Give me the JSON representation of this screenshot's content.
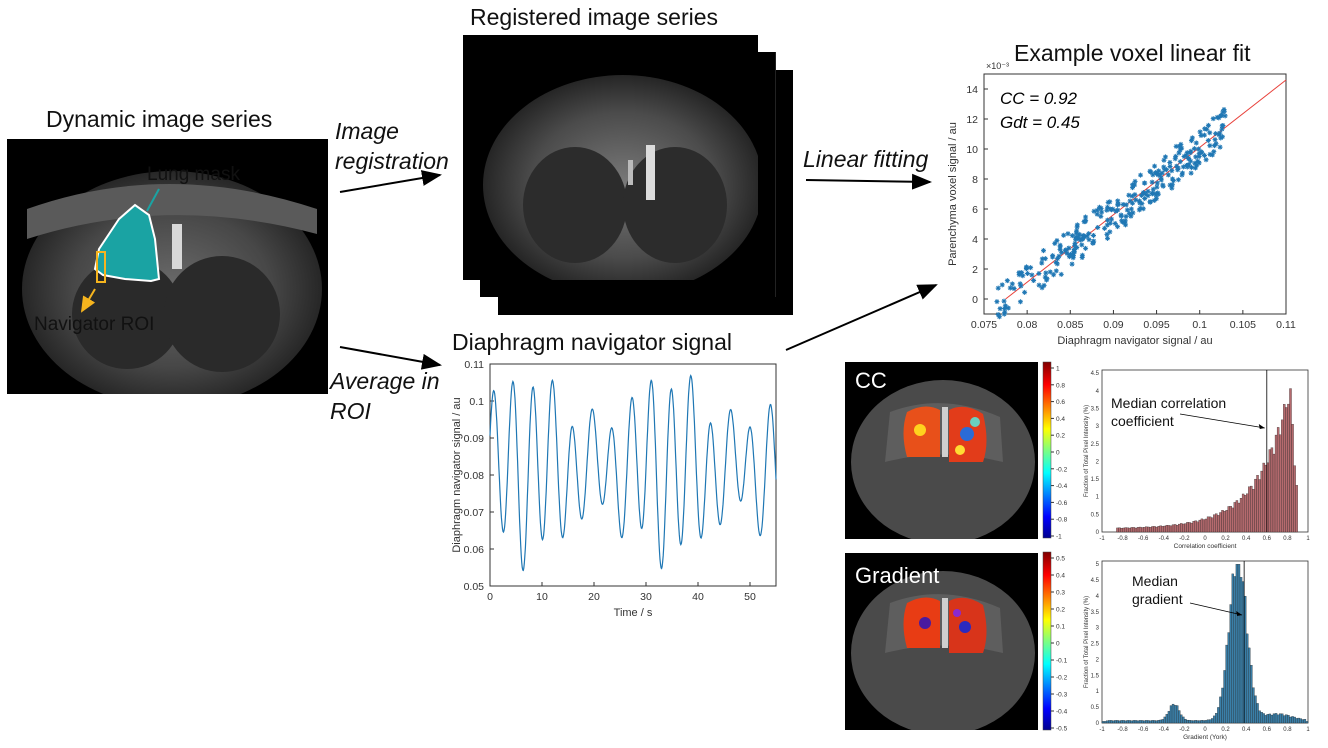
{
  "titles": {
    "dynamic": "Dynamic image series",
    "registered": "Registered image series",
    "example_fit": "Example voxel linear fit",
    "diaphragm": "Diaphragm navigator signal"
  },
  "steps": {
    "registration_1": "Image",
    "registration_2": "registration",
    "linear_fitting": "Linear fitting",
    "average_1": "Average in",
    "average_2": "ROI"
  },
  "dynamic_labels": {
    "lung_mask": "Lung mask",
    "navigator_roi": "Navigator ROI"
  },
  "colors": {
    "lung_mask": "#1aa3a3",
    "navigator": "#f5b41e",
    "scatter": "#1f77b4",
    "fit_line": "#e8403a",
    "hist_cc": "#b56a6e",
    "hist_grad": "#3a7fa8"
  },
  "scatter": {
    "annotation_cc": "CC = 0.92",
    "annotation_gdt": "Gdt = 0.45",
    "exponent": "×10⁻³",
    "xlabel": "Diaphragm navigator signal / au",
    "ylabel": "Parenchyma voxel signal / au",
    "xticks": [
      "0.075",
      "0.08",
      "0.085",
      "0.09",
      "0.095",
      "0.1",
      "0.105",
      "0.11"
    ],
    "yticks": [
      "0",
      "2",
      "4",
      "6",
      "8",
      "10",
      "12",
      "14"
    ]
  },
  "signal": {
    "xlabel": "Time / s",
    "ylabel": "Diaphragm navigator signal / au",
    "xticks": [
      "0",
      "10",
      "20",
      "30",
      "40",
      "50"
    ],
    "yticks": [
      "0.05",
      "0.06",
      "0.07",
      "0.08",
      "0.09",
      "0.1",
      "0.11"
    ]
  },
  "maps": {
    "cc_label": "CC",
    "grad_label": "Gradient",
    "cc_ticks": [
      "1",
      "0.8",
      "0.6",
      "0.4",
      "0.2",
      "0",
      "-0.2",
      "-0.4",
      "-0.6",
      "-0.8",
      "-1"
    ],
    "grad_ticks": [
      "0.5",
      "0.4",
      "0.3",
      "0.2",
      "0.1",
      "0",
      "-0.1",
      "-0.2",
      "-0.3",
      "-0.4",
      "-0.5"
    ]
  },
  "hist_cc": {
    "annotation_1": "Median correlation",
    "annotation_2": "coefficient",
    "xlabel": "Correlation coefficient",
    "ylabel": "Fraction of Total Pixel Intensity (%)",
    "xticks": [
      "-1",
      "-0.8",
      "-0.6",
      "-0.4",
      "-0.2",
      "0",
      "0.2",
      "0.4",
      "0.6",
      "0.8",
      "1"
    ],
    "yticks": [
      "0",
      "0.5",
      "1",
      "1.5",
      "2",
      "2.5",
      "3",
      "3.5",
      "4",
      "4.5"
    ]
  },
  "hist_grad": {
    "annotation_1": "Median",
    "annotation_2": "gradient",
    "xlabel": "Gradient (York)",
    "ylabel": "Fraction of Total Pixel Intensity (%)",
    "xticks": [
      "-1",
      "-0.8",
      "-0.6",
      "-0.4",
      "-0.2",
      "0",
      "0.2",
      "0.4",
      "0.6",
      "0.8",
      "1"
    ],
    "yticks": [
      "0",
      "0.5",
      "1",
      "1.5",
      "2",
      "2.5",
      "3",
      "3.5",
      "4",
      "4.5",
      "5"
    ]
  }
}
